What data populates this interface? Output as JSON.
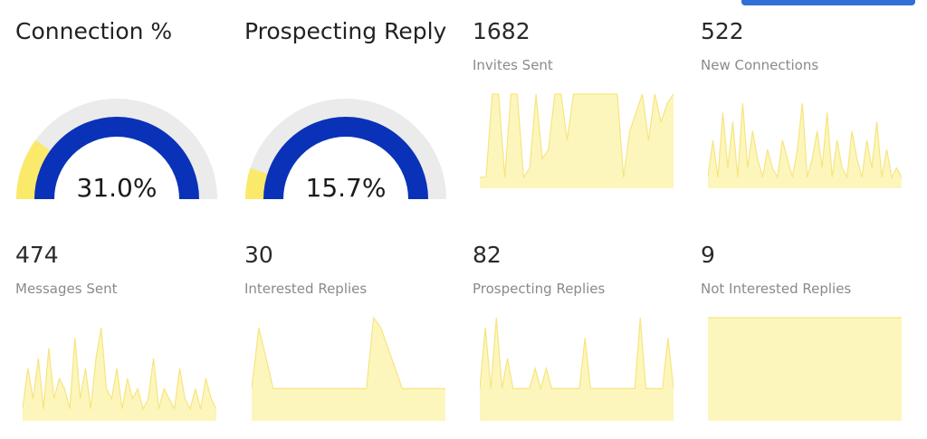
{
  "colors": {
    "gauge_fill": "#0a32b8",
    "gauge_target": "#fbe96a",
    "gauge_track": "#ebebeb",
    "spark_fill": "#fdf6bc",
    "spark_stroke": "#f6e57f",
    "top_button": "#2f6fd6"
  },
  "gauges": [
    {
      "title": "Connection %",
      "value_text": "31.0%",
      "fill": 1.0,
      "target_fraction": 0.2
    },
    {
      "title": "Prospecting Reply",
      "value_text": "15.7%",
      "fill": 1.0,
      "target_fraction": 0.1
    }
  ],
  "stats": [
    {
      "value": "1682",
      "label": "Invites Sent",
      "series": [
        0.1,
        0.1,
        1.0,
        1.0,
        0.1,
        1.0,
        1.0,
        0.1,
        0.2,
        1.0,
        0.3,
        0.4,
        1.0,
        1.0,
        0.5,
        1.0,
        1.0,
        1.0,
        1.0,
        1.0,
        1.0,
        1.0,
        1.0,
        0.1,
        0.6,
        0.8,
        1.0,
        0.5,
        1.0,
        0.7,
        0.9,
        1.0
      ]
    },
    {
      "value": "522",
      "label": "New Connections",
      "series": [
        0.1,
        0.5,
        0.1,
        0.8,
        0.2,
        0.7,
        0.1,
        0.9,
        0.2,
        0.6,
        0.3,
        0.1,
        0.4,
        0.2,
        0.1,
        0.5,
        0.3,
        0.1,
        0.4,
        0.9,
        0.1,
        0.3,
        0.6,
        0.2,
        0.8,
        0.1,
        0.5,
        0.2,
        0.1,
        0.6,
        0.3,
        0.1,
        0.5,
        0.2,
        0.7,
        0.1,
        0.4,
        0.1,
        0.2,
        0.1
      ]
    },
    {
      "value": "474",
      "label": "Messages Sent",
      "series": [
        0.1,
        0.5,
        0.2,
        0.6,
        0.1,
        0.7,
        0.2,
        0.4,
        0.3,
        0.1,
        0.8,
        0.2,
        0.5,
        0.1,
        0.6,
        0.9,
        0.3,
        0.2,
        0.5,
        0.1,
        0.4,
        0.2,
        0.3,
        0.1,
        0.2,
        0.6,
        0.1,
        0.3,
        0.2,
        0.1,
        0.5,
        0.2,
        0.1,
        0.3,
        0.1,
        0.4,
        0.2,
        0.1
      ]
    },
    {
      "value": "30",
      "label": "Interested Replies",
      "series": [
        0.3,
        0.9,
        0.6,
        0.3,
        0.3,
        0.3,
        0.3,
        0.3,
        0.3,
        0.3,
        0.3,
        0.3,
        0.3,
        0.3,
        0.3,
        0.3,
        0.3,
        1.0,
        0.9,
        0.7,
        0.5,
        0.3,
        0.3,
        0.3,
        0.3,
        0.3,
        0.3,
        0.3
      ]
    },
    {
      "value": "82",
      "label": "Prospecting Replies",
      "series": [
        0.3,
        0.9,
        0.3,
        1.0,
        0.3,
        0.6,
        0.3,
        0.3,
        0.3,
        0.3,
        0.5,
        0.3,
        0.5,
        0.3,
        0.3,
        0.3,
        0.3,
        0.3,
        0.3,
        0.8,
        0.3,
        0.3,
        0.3,
        0.3,
        0.3,
        0.3,
        0.3,
        0.3,
        0.3,
        1.0,
        0.3,
        0.3,
        0.3,
        0.3,
        0.8,
        0.3
      ]
    },
    {
      "value": "9",
      "label": "Not Interested Replies",
      "series": [
        1.0,
        1.0,
        1.0,
        1.0,
        1.0,
        1.0,
        1.0,
        1.0
      ]
    }
  ]
}
